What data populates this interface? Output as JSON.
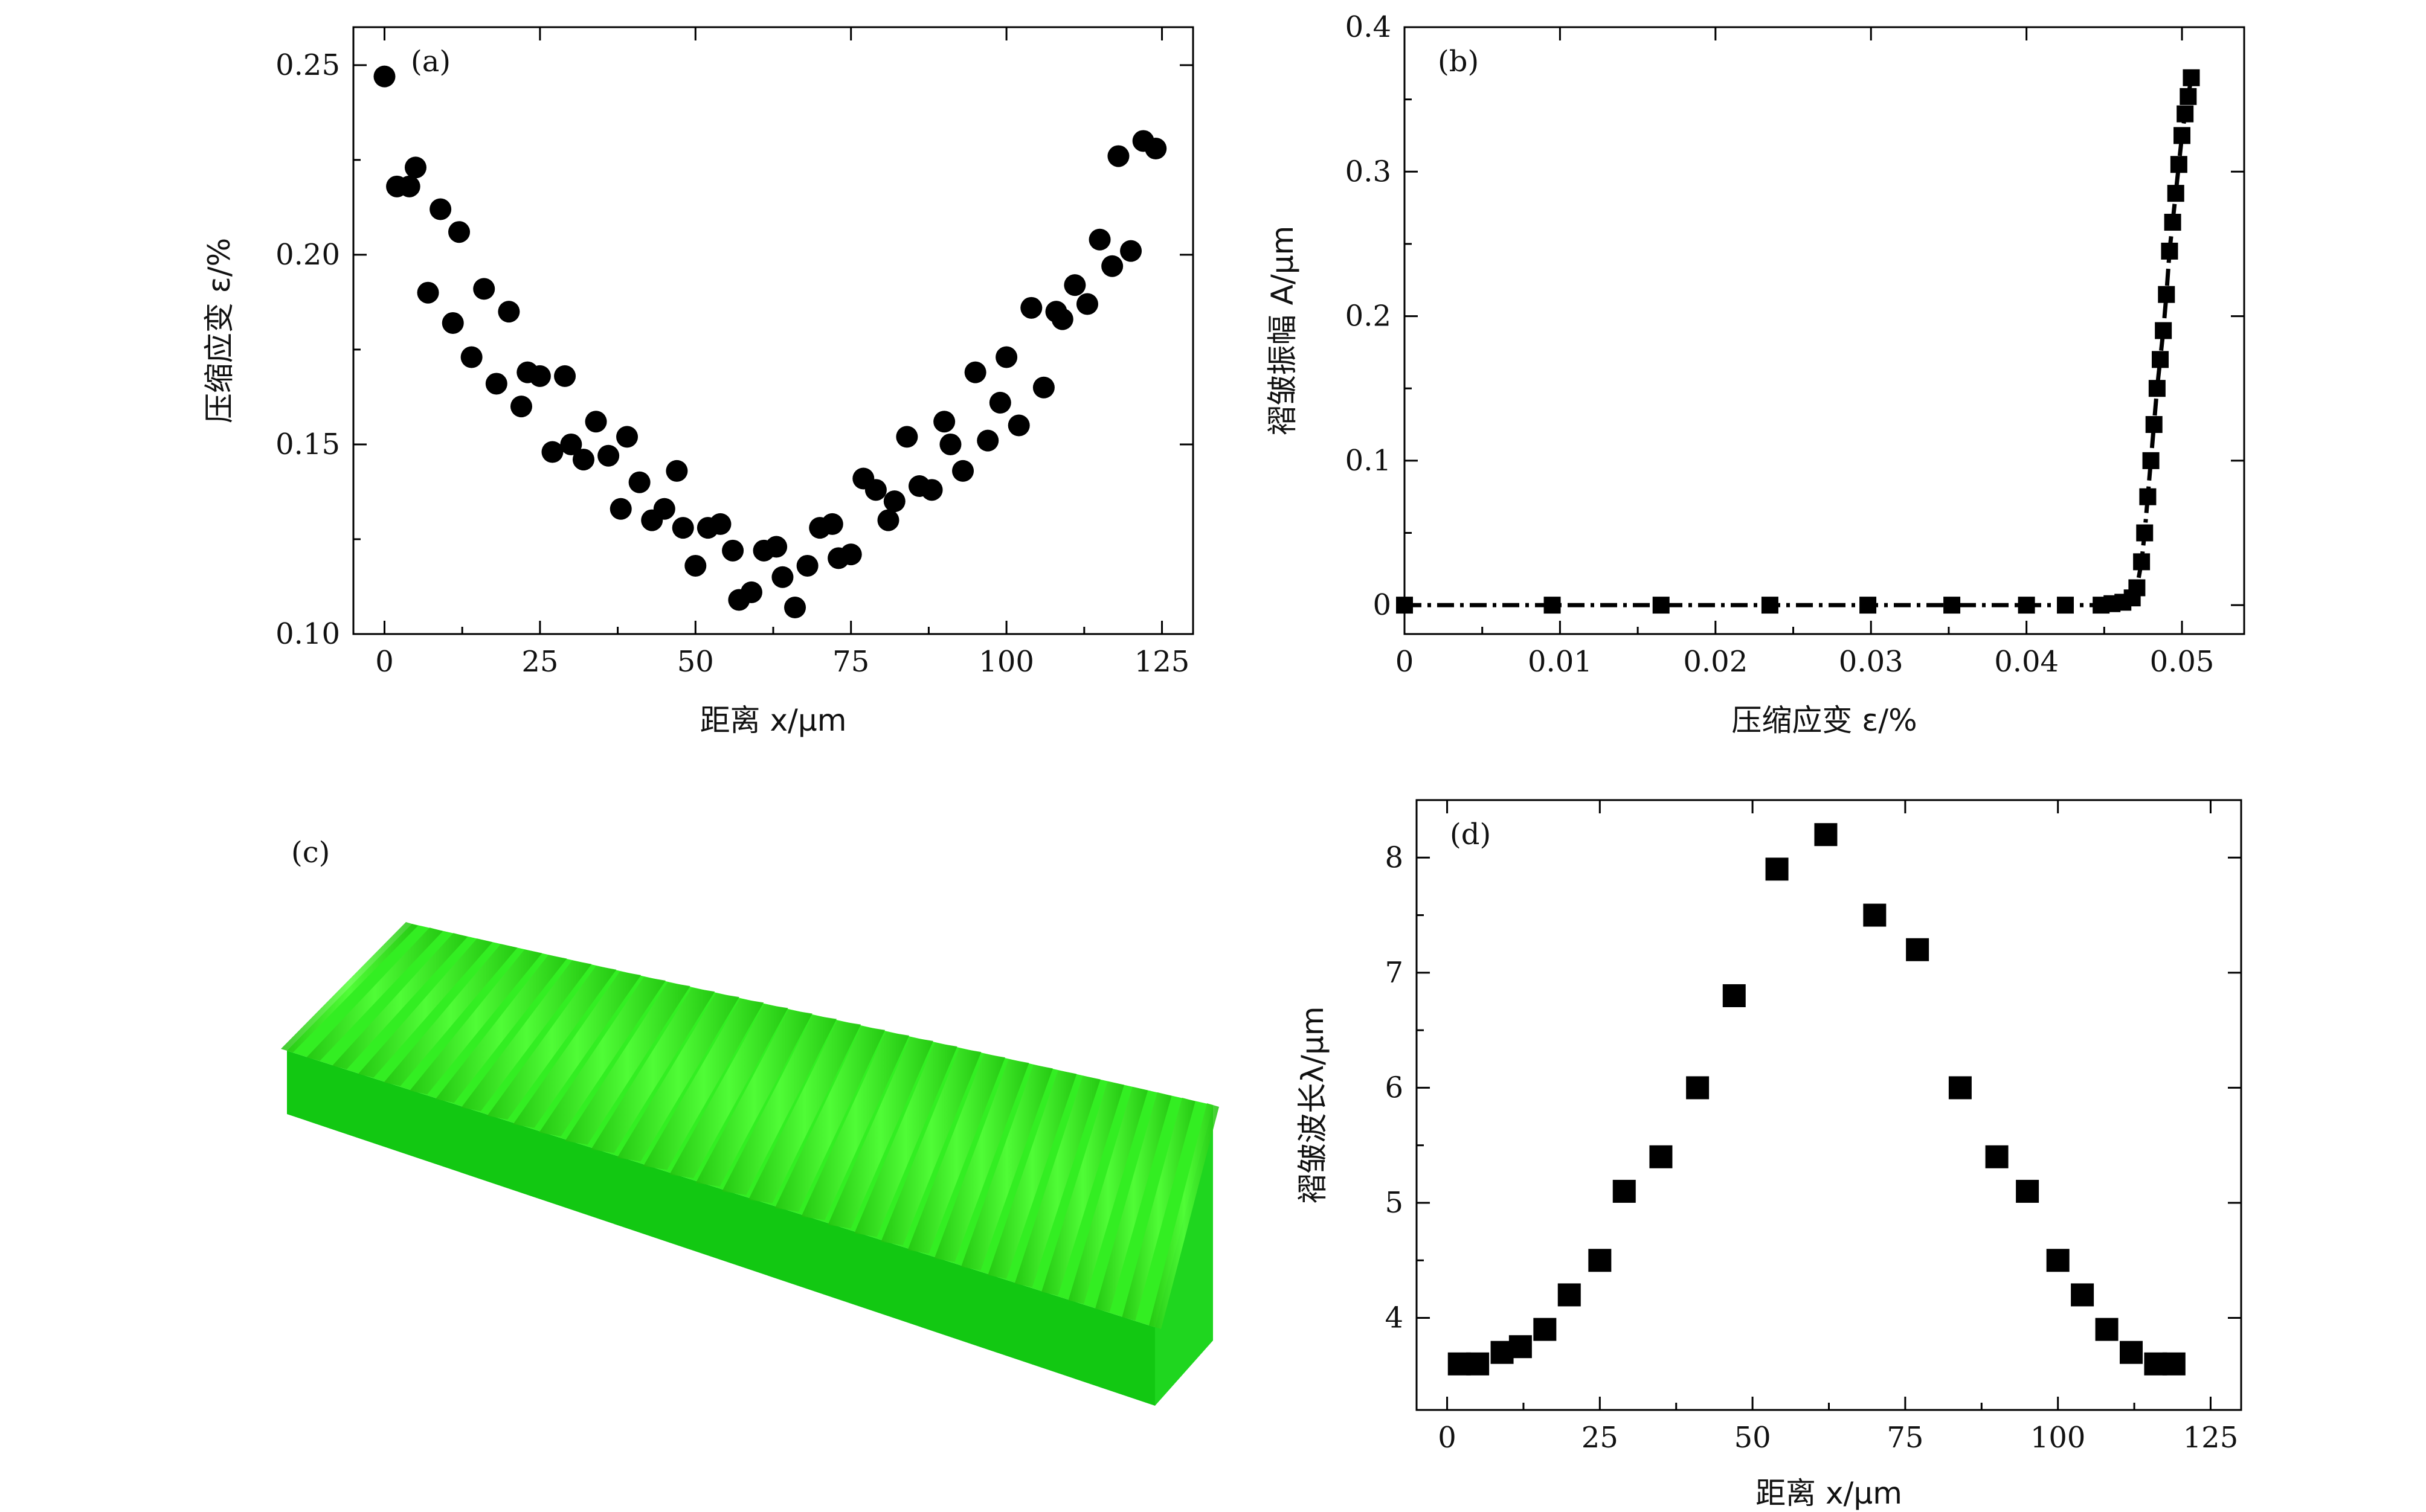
{
  "chart_data": [
    {
      "panel": "(a)",
      "type": "scatter",
      "marker": "circle",
      "xlabel": "距离 x/μm",
      "ylabel": "压缩应变 ε/%",
      "xlim": [
        -5,
        130
      ],
      "ylim": [
        0.1,
        0.26
      ],
      "xticks": [
        0,
        25,
        50,
        75,
        100,
        125
      ],
      "xtick_labels": [
        "0",
        "25",
        "50",
        "75",
        "100",
        "125"
      ],
      "yticks": [
        0.1,
        0.15,
        0.2,
        0.25
      ],
      "ytick_labels": [
        "0.10",
        "0.15",
        "0.20",
        "0.25"
      ],
      "x": [
        0,
        2,
        4,
        5,
        7,
        9,
        11,
        12,
        14,
        16,
        18,
        20,
        22,
        23,
        25,
        27,
        29,
        30,
        32,
        34,
        36,
        38,
        39,
        41,
        43,
        45,
        47,
        48,
        50,
        52,
        54,
        56,
        57,
        59,
        61,
        63,
        64,
        66,
        68,
        70,
        72,
        73,
        75,
        77,
        79,
        81,
        82,
        84,
        86,
        88,
        90,
        91,
        93,
        95,
        97,
        99,
        100,
        102,
        104,
        106,
        108,
        109,
        111,
        113,
        115,
        117,
        118,
        120,
        122,
        124
      ],
      "y": [
        0.247,
        0.218,
        0.218,
        0.223,
        0.19,
        0.212,
        0.182,
        0.206,
        0.173,
        0.191,
        0.166,
        0.185,
        0.16,
        0.169,
        0.168,
        0.148,
        0.168,
        0.15,
        0.146,
        0.156,
        0.147,
        0.133,
        0.152,
        0.14,
        0.13,
        0.133,
        0.143,
        0.128,
        0.118,
        0.128,
        0.129,
        0.122,
        0.109,
        0.111,
        0.122,
        0.123,
        0.115,
        0.107,
        0.118,
        0.128,
        0.129,
        0.12,
        0.121,
        0.141,
        0.138,
        0.13,
        0.135,
        0.152,
        0.139,
        0.138,
        0.156,
        0.15,
        0.143,
        0.169,
        0.151,
        0.161,
        0.173,
        0.155,
        0.186,
        0.165,
        0.185,
        0.183,
        0.192,
        0.187,
        0.204,
        0.197,
        0.226,
        0.201,
        0.23,
        0.228
      ]
    },
    {
      "panel": "(b)",
      "type": "line",
      "marker": "square",
      "xlabel": "压缩应变 ε/%",
      "ylabel": "褶皱振幅 A/μm",
      "xlim": [
        0,
        0.054
      ],
      "ylim": [
        -0.02,
        0.4
      ],
      "xticks": [
        0,
        0.01,
        0.02,
        0.03,
        0.04,
        0.05
      ],
      "xtick_labels": [
        "0",
        "0.01",
        "0.02",
        "0.03",
        "0.04",
        "0.05"
      ],
      "yticks": [
        0,
        0.1,
        0.2,
        0.3,
        0.4
      ],
      "ytick_labels": [
        "0",
        "0.1",
        "0.2",
        "0.3",
        "0.4"
      ],
      "x": [
        0,
        0.0095,
        0.0165,
        0.0235,
        0.0298,
        0.0352,
        0.04,
        0.0425,
        0.0448,
        0.0455,
        0.0462,
        0.0468,
        0.0471,
        0.0474,
        0.0476,
        0.0478,
        0.048,
        0.0482,
        0.0484,
        0.0486,
        0.0488,
        0.049,
        0.0492,
        0.0494,
        0.0496,
        0.0498,
        0.05,
        0.0502,
        0.0504,
        0.0506
      ],
      "y": [
        0,
        0,
        0,
        0,
        0,
        0,
        0,
        0,
        0,
        0.001,
        0.002,
        0.005,
        0.012,
        0.03,
        0.05,
        0.075,
        0.1,
        0.125,
        0.15,
        0.17,
        0.19,
        0.215,
        0.245,
        0.265,
        0.285,
        0.305,
        0.325,
        0.34,
        0.352,
        0.365
      ]
    },
    {
      "panel": "(d)",
      "type": "scatter",
      "marker": "square",
      "xlabel": "距离 x/μm",
      "ylabel": "褶皱波长λ/μm",
      "xlim": [
        -5,
        130
      ],
      "ylim": [
        3.2,
        8.5
      ],
      "xticks": [
        0,
        25,
        50,
        75,
        100,
        125
      ],
      "xtick_labels": [
        "0",
        "25",
        "50",
        "75",
        "100",
        "125"
      ],
      "yticks": [
        4,
        5,
        6,
        7,
        8
      ],
      "ytick_labels": [
        "4",
        "5",
        "6",
        "7",
        "8"
      ],
      "x": [
        2,
        5,
        9,
        12,
        16,
        20,
        25,
        29,
        35,
        41,
        47,
        54,
        62,
        70,
        77,
        84,
        90,
        95,
        100,
        104,
        108,
        112,
        116,
        119
      ],
      "y": [
        3.6,
        3.6,
        3.7,
        3.75,
        3.9,
        4.2,
        4.5,
        5.1,
        5.4,
        6.0,
        6.8,
        7.9,
        8.2,
        7.5,
        7.2,
        6.0,
        5.4,
        5.1,
        4.5,
        4.2,
        3.9,
        3.7,
        3.6,
        3.6
      ]
    }
  ],
  "panel_c": {
    "label": "(c)",
    "colors": {
      "top": "#33ee22",
      "front": "#12c812",
      "side": "#1fd61f"
    }
  }
}
